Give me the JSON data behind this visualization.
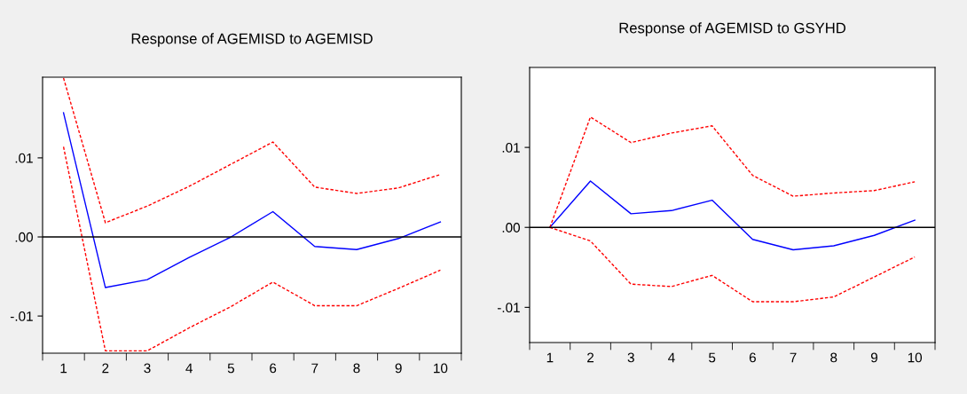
{
  "chart_data": [
    {
      "type": "line",
      "title": "Response of AGEMISD to AGEMISD",
      "x": [
        1,
        2,
        3,
        4,
        5,
        6,
        7,
        8,
        9,
        10
      ],
      "series": [
        {
          "color": "#0000ff",
          "line_style": "solid",
          "values": [
            0.0157,
            -0.0064,
            -0.0054,
            -0.0026,
            0.0,
            0.0032,
            -0.0012,
            -0.0016,
            -0.0002,
            0.0019
          ]
        },
        {
          "color": "#ff0000",
          "line_style": "dashed",
          "values": [
            0.0201,
            0.0018,
            0.0039,
            0.0064,
            0.0092,
            0.012,
            0.0063,
            0.0055,
            0.0062,
            0.0079
          ]
        },
        {
          "color": "#ff0000",
          "line_style": "dashed",
          "values": [
            0.0114,
            -0.0144,
            -0.0144,
            -0.0115,
            -0.0088,
            -0.0057,
            -0.0087,
            -0.0087,
            -0.0065,
            -0.0042
          ]
        }
      ],
      "xlim": [
        0.5,
        10.5
      ],
      "xticks": [
        1,
        2,
        3,
        4,
        5,
        6,
        7,
        8,
        9,
        10
      ],
      "ylim": [
        -0.0147,
        0.0202
      ],
      "yticks": [
        {
          "value": 0.01,
          "label": ".01"
        },
        {
          "value": 0.0,
          "label": ".00"
        },
        {
          "value": -0.01,
          "label": "-.01"
        }
      ],
      "ref_lines": [
        {
          "axis": "y",
          "value": 0.0,
          "color": "#000000"
        }
      ],
      "grid": false,
      "legend": false
    },
    {
      "type": "line",
      "title": "Response of AGEMISD to GSYHD",
      "x": [
        1,
        2,
        3,
        4,
        5,
        6,
        7,
        8,
        9,
        10
      ],
      "series": [
        {
          "color": "#0000ff",
          "line_style": "solid",
          "values": [
            0.0,
            0.0058,
            0.0017,
            0.0021,
            0.0034,
            -0.0015,
            -0.0028,
            -0.0023,
            -0.001,
            0.0009
          ]
        },
        {
          "color": "#ff0000",
          "line_style": "dashed",
          "values": [
            0.0,
            0.0138,
            0.0106,
            0.0118,
            0.0127,
            0.0065,
            0.0039,
            0.0043,
            0.0046,
            0.0057
          ]
        },
        {
          "color": "#ff0000",
          "line_style": "dashed",
          "values": [
            0.0,
            -0.0017,
            -0.0071,
            -0.0074,
            -0.006,
            -0.0093,
            -0.0093,
            -0.0087,
            -0.0062,
            -0.0037
          ]
        }
      ],
      "xlim": [
        0.5,
        10.5
      ],
      "xticks": [
        1,
        2,
        3,
        4,
        5,
        6,
        7,
        8,
        9,
        10
      ],
      "ylim": [
        -0.0144,
        0.02
      ],
      "yticks": [
        {
          "value": 0.01,
          "label": ".01"
        },
        {
          "value": 0.0,
          "label": ".00"
        },
        {
          "value": -0.01,
          "label": "-.01"
        }
      ],
      "ref_lines": [
        {
          "axis": "y",
          "value": 0.0,
          "color": "#000000"
        }
      ],
      "grid": false,
      "legend": false
    }
  ]
}
